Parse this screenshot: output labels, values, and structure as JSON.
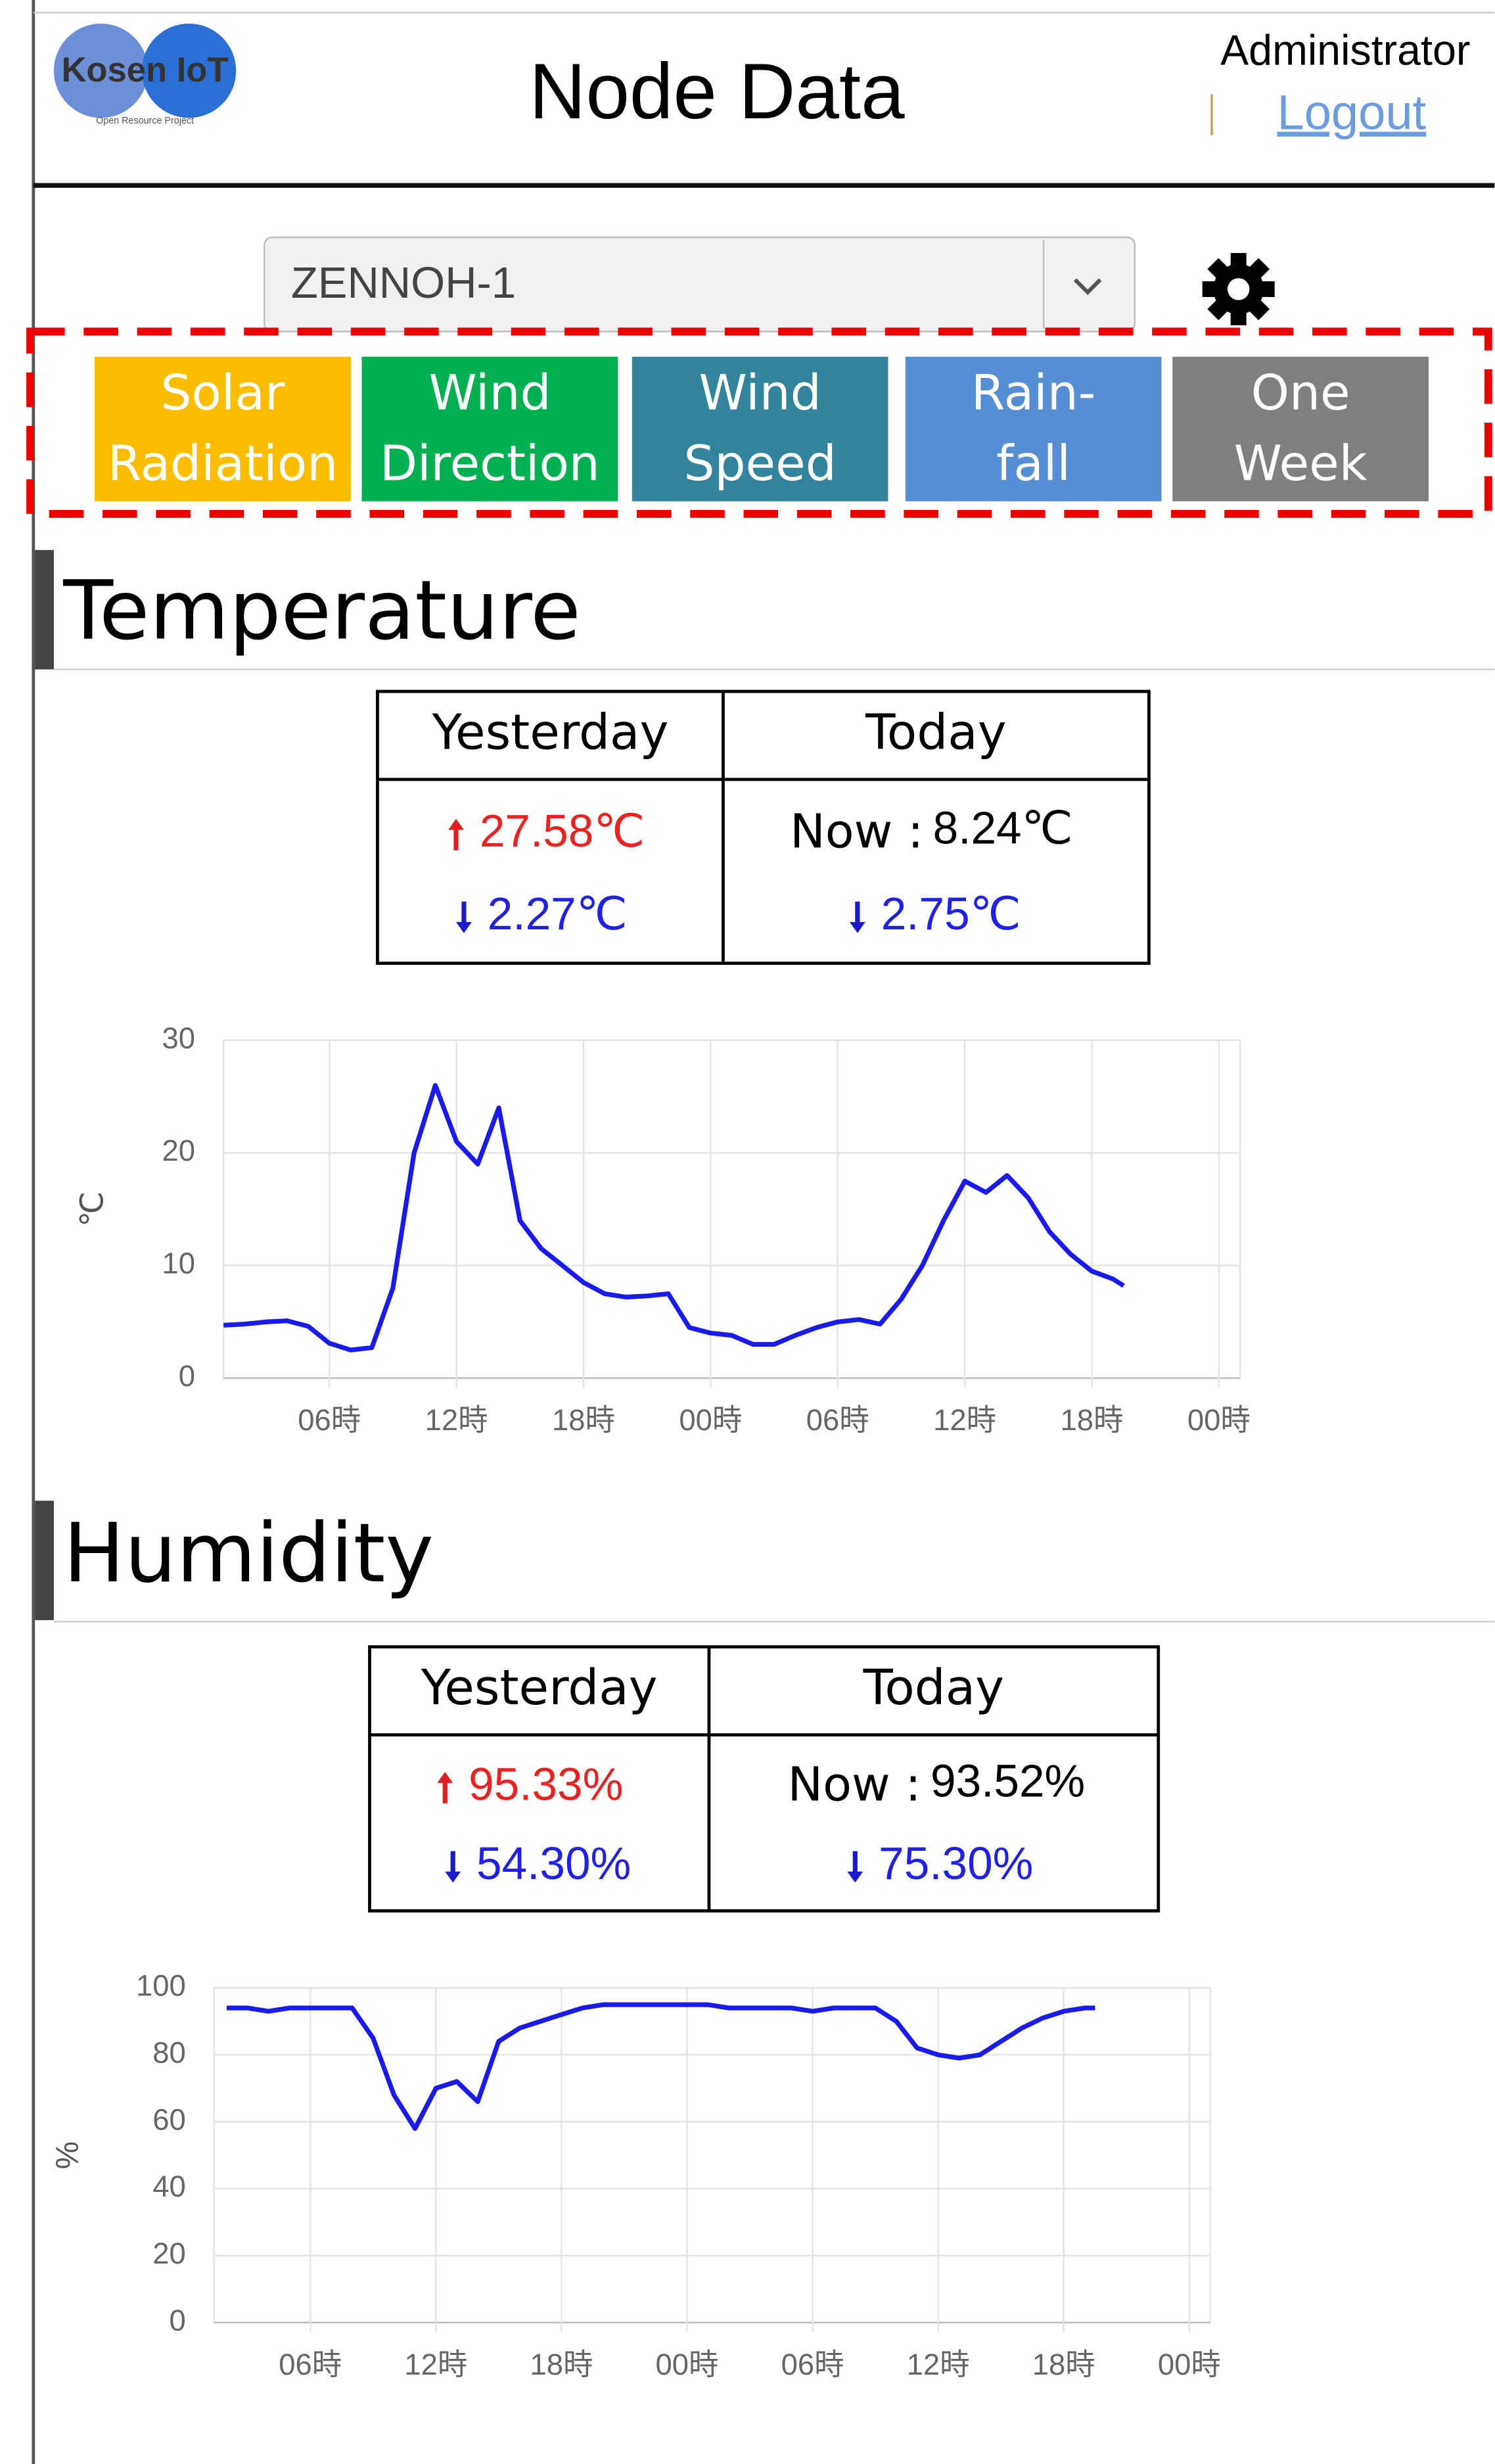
{
  "header": {
    "logo": "Kosen IoT",
    "logo_sub": "Open Resource Project",
    "title": "Node Data",
    "user": "Administrator",
    "logout": "Logout"
  },
  "selector": {
    "node": "ZENNOH-1"
  },
  "buttons": [
    [
      "Solar",
      "Radiation"
    ],
    [
      "Wind",
      "Direction"
    ],
    [
      "Wind",
      "Speed"
    ],
    [
      "Rain-",
      "fall"
    ],
    [
      "One",
      "Week"
    ]
  ],
  "sections": [
    {
      "title": "Temperature",
      "table": {
        "headers": [
          "Yesterday",
          "Today"
        ],
        "yesterday_high": "27.58℃",
        "yesterday_low": "2.27℃",
        "now_label": "Now :",
        "now_value": "8.24℃",
        "today_low": "2.75℃"
      },
      "chart": {
        "type": "line",
        "ylabel": "℃",
        "x": [
          1,
          2,
          3,
          4,
          5,
          6,
          7,
          8,
          9,
          10,
          11,
          12,
          13,
          14,
          15,
          16,
          17,
          18,
          19,
          20,
          21,
          22,
          23,
          24,
          25,
          26,
          27,
          28,
          29,
          30,
          31,
          32,
          33,
          34,
          35,
          36,
          37,
          38,
          39,
          40,
          41,
          42,
          43,
          43.5
        ],
        "series": [
          {
            "color": "#1a1aee",
            "values": [
              4.7,
              4.8,
              5.0,
              5.1,
              4.6,
              3.1,
              2.5,
              2.7,
              8,
              20,
              26,
              21,
              19,
              24,
              14,
              11.5,
              10,
              8.5,
              7.5,
              7.2,
              7.3,
              7.5,
              4.5,
              4.0,
              3.8,
              3.0,
              3.0,
              3.8,
              4.5,
              5.0,
              5.2,
              4.8,
              7.0,
              10.0,
              14,
              17.5,
              16.5,
              18,
              16,
              13,
              11,
              9.5,
              8.8,
              8.2
            ]
          }
        ],
        "xlim": [
          1,
          49
        ],
        "xticks": [
          {
            "value": 6,
            "label": "06時"
          },
          {
            "value": 12,
            "label": "12時"
          },
          {
            "value": 18,
            "label": "18時"
          },
          {
            "value": 24,
            "label": "00時"
          },
          {
            "value": 30,
            "label": "06時"
          },
          {
            "value": 36,
            "label": "12時"
          },
          {
            "value": 42,
            "label": "18時"
          },
          {
            "value": 48,
            "label": "00時"
          }
        ],
        "ylim": [
          0,
          30
        ],
        "yticks": [
          0,
          10,
          20,
          30
        ],
        "grid": true
      }
    },
    {
      "title": "Humidity",
      "table": {
        "headers": [
          "Yesterday",
          "Today"
        ],
        "yesterday_high": "95.33%",
        "yesterday_low": "54.30%",
        "now_label": "Now :",
        "now_value": "93.52%",
        "today_low": "75.30%"
      },
      "chart": {
        "type": "line",
        "ylabel": "%",
        "x": [
          2,
          3,
          4,
          5,
          6,
          7,
          8,
          9,
          10,
          11,
          12,
          13,
          14,
          15,
          16,
          17,
          18,
          19,
          20,
          21,
          22,
          23,
          24,
          25,
          26,
          27,
          28,
          29,
          30,
          31,
          32,
          33,
          34,
          35,
          36,
          37,
          38,
          39,
          40,
          41,
          42,
          43,
          43.5
        ],
        "series": [
          {
            "color": "#1a1aee",
            "values": [
              94,
              94,
              93,
              94,
              94,
              94,
              94,
              85,
              68,
              58,
              70,
              72,
              66,
              84,
              88,
              90,
              92,
              94,
              95,
              95,
              95,
              95,
              95,
              95,
              94,
              94,
              94,
              94,
              93,
              94,
              94,
              94,
              90,
              82,
              80,
              79,
              80,
              84,
              88,
              91,
              93,
              94,
              94
            ]
          }
        ],
        "xlim": [
          1.4,
          49
        ],
        "xticks": [
          {
            "value": 6,
            "label": "06時"
          },
          {
            "value": 12,
            "label": "12時"
          },
          {
            "value": 18,
            "label": "18時"
          },
          {
            "value": 24,
            "label": "00時"
          },
          {
            "value": 30,
            "label": "06時"
          },
          {
            "value": 36,
            "label": "12時"
          },
          {
            "value": 42,
            "label": "18時"
          },
          {
            "value": 48,
            "label": "00時"
          }
        ],
        "ylim": [
          0,
          100
        ],
        "yticks": [
          0,
          20,
          40,
          60,
          80,
          100
        ],
        "grid": true
      }
    }
  ]
}
